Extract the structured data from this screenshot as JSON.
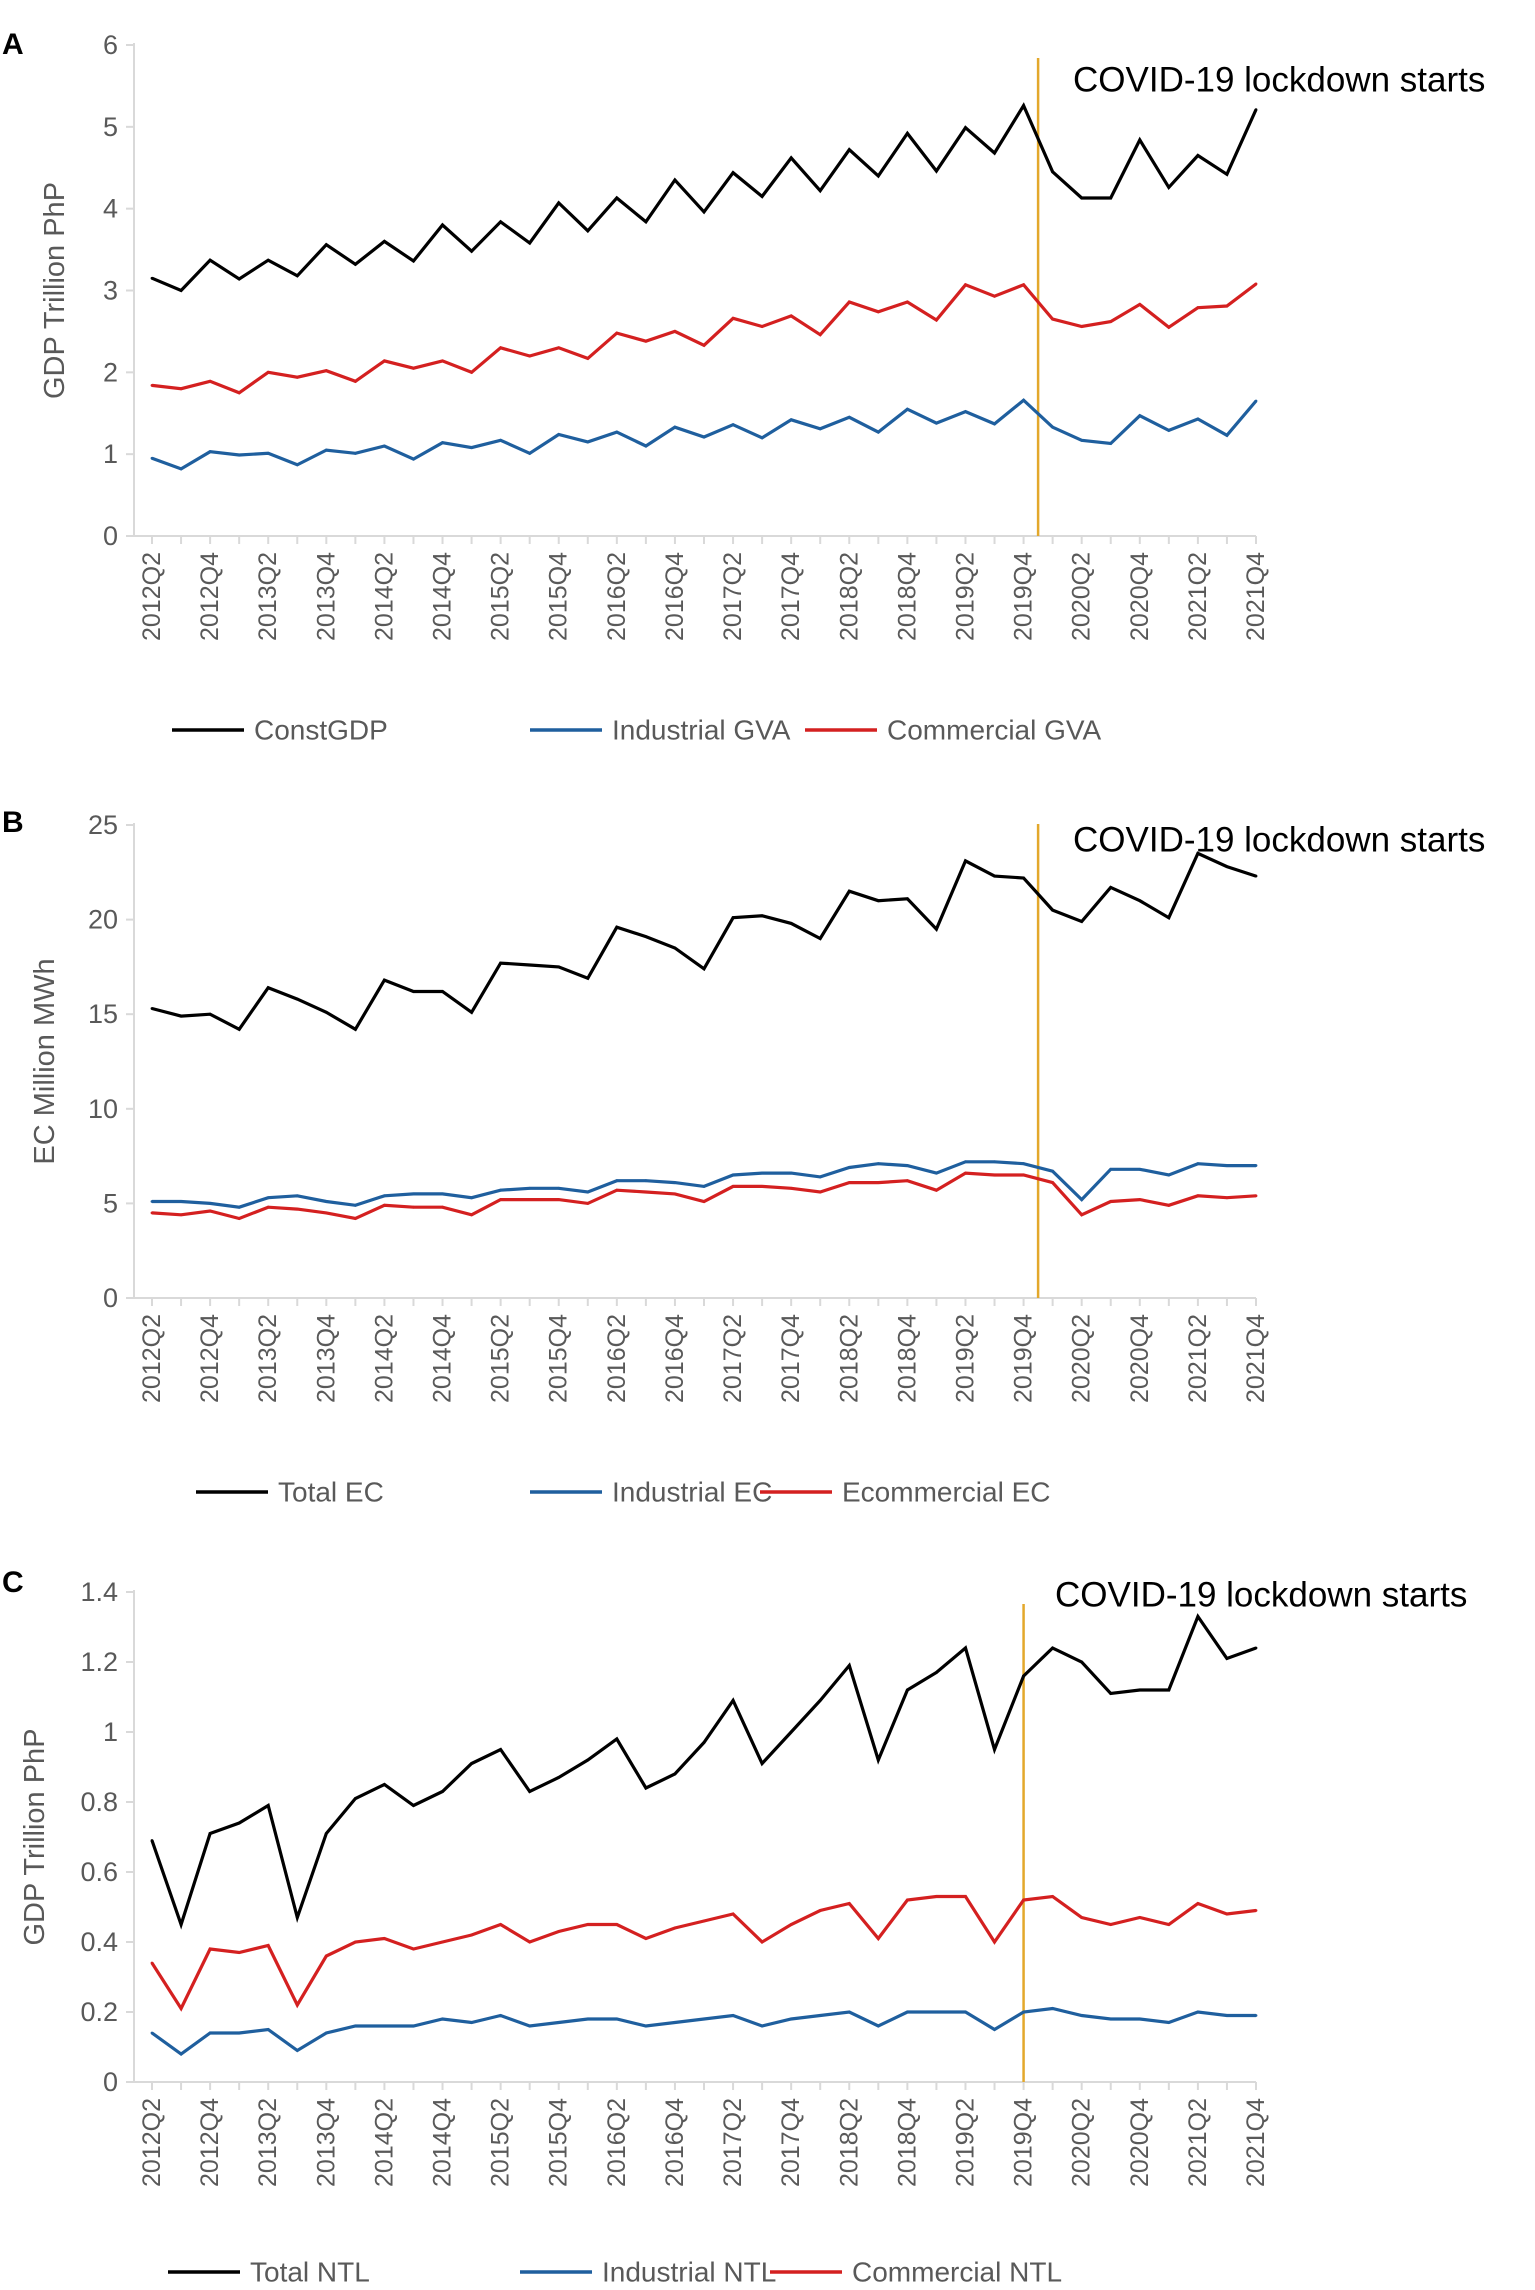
{
  "chart_data": [
    {
      "panel": "A",
      "type": "line",
      "ylabel": "GDP Trillion PhP",
      "ylim": [
        0,
        6
      ],
      "yticks": [
        "0",
        "1",
        "2",
        "3",
        "4",
        "5",
        "6"
      ],
      "x": [
        "2012Q2",
        "2012Q3",
        "2012Q4",
        "2013Q1",
        "2013Q2",
        "2013Q3",
        "2013Q4",
        "2014Q1",
        "2014Q2",
        "2014Q3",
        "2014Q4",
        "2015Q1",
        "2015Q2",
        "2015Q3",
        "2015Q4",
        "2016Q1",
        "2016Q2",
        "2016Q3",
        "2016Q4",
        "2017Q1",
        "2017Q2",
        "2017Q3",
        "2017Q4",
        "2018Q1",
        "2018Q2",
        "2018Q3",
        "2018Q4",
        "2019Q1",
        "2019Q2",
        "2019Q3",
        "2019Q4",
        "2020Q1",
        "2020Q2",
        "2020Q3",
        "2020Q4",
        "2021Q1",
        "2021Q2",
        "2021Q3",
        "2021Q4"
      ],
      "xtick_labels": [
        "2012Q2",
        "2012Q4",
        "2013Q2",
        "2013Q4",
        "2014Q2",
        "2014Q4",
        "2015Q2",
        "2015Q4",
        "2016Q2",
        "2016Q4",
        "2017Q2",
        "2017Q4",
        "2018Q2",
        "2018Q4",
        "2019Q2",
        "2019Q4",
        "2020Q2",
        "2020Q4",
        "2021Q2",
        "2021Q4"
      ],
      "annotation": "COVID-19 lockdown starts",
      "event_x": 30.5,
      "series": [
        {
          "name": "ConstGDP",
          "color": "#000000",
          "values": [
            3.15,
            3.0,
            3.37,
            3.14,
            3.37,
            3.18,
            3.56,
            3.32,
            3.6,
            3.36,
            3.8,
            3.48,
            3.84,
            3.58,
            4.07,
            3.73,
            4.13,
            3.84,
            4.35,
            3.96,
            4.44,
            4.15,
            4.62,
            4.22,
            4.72,
            4.4,
            4.92,
            4.46,
            4.99,
            4.68,
            5.26,
            4.45,
            4.13,
            4.13,
            4.84,
            4.26,
            4.65,
            4.42,
            5.21
          ]
        },
        {
          "name": "Industrial GVA",
          "color": "#1f5f9e",
          "values": [
            0.95,
            0.82,
            1.03,
            0.99,
            1.01,
            0.87,
            1.05,
            1.01,
            1.1,
            0.94,
            1.14,
            1.08,
            1.17,
            1.01,
            1.24,
            1.15,
            1.27,
            1.1,
            1.33,
            1.21,
            1.36,
            1.2,
            1.42,
            1.31,
            1.45,
            1.27,
            1.55,
            1.38,
            1.52,
            1.37,
            1.66,
            1.33,
            1.17,
            1.13,
            1.47,
            1.29,
            1.43,
            1.23,
            1.65
          ]
        },
        {
          "name": "Commercial GVA",
          "color": "#d42020",
          "values": [
            1.84,
            1.8,
            1.89,
            1.75,
            2.0,
            1.94,
            2.02,
            1.89,
            2.14,
            2.05,
            2.14,
            2.0,
            2.3,
            2.2,
            2.3,
            2.17,
            2.48,
            2.38,
            2.5,
            2.33,
            2.66,
            2.56,
            2.69,
            2.46,
            2.86,
            2.74,
            2.86,
            2.64,
            3.07,
            2.93,
            3.07,
            2.65,
            2.56,
            2.62,
            2.83,
            2.55,
            2.79,
            2.81,
            3.08
          ]
        }
      ]
    },
    {
      "panel": "B",
      "type": "line",
      "ylabel": "EC Million MWh",
      "ylim": [
        0,
        25
      ],
      "yticks": [
        "0",
        "5",
        "10",
        "15",
        "20",
        "25"
      ],
      "x": [
        "2012Q2",
        "2012Q3",
        "2012Q4",
        "2013Q1",
        "2013Q2",
        "2013Q3",
        "2013Q4",
        "2014Q1",
        "2014Q2",
        "2014Q3",
        "2014Q4",
        "2015Q1",
        "2015Q2",
        "2015Q3",
        "2015Q4",
        "2016Q1",
        "2016Q2",
        "2016Q3",
        "2016Q4",
        "2017Q1",
        "2017Q2",
        "2017Q3",
        "2017Q4",
        "2018Q1",
        "2018Q2",
        "2018Q3",
        "2018Q4",
        "2019Q1",
        "2019Q2",
        "2019Q3",
        "2019Q4",
        "2020Q1",
        "2020Q2",
        "2020Q3",
        "2020Q4",
        "2021Q1",
        "2021Q2",
        "2021Q3",
        "2021Q4"
      ],
      "xtick_labels": [
        "2012Q2",
        "2012Q4",
        "2013Q2",
        "2013Q4",
        "2014Q2",
        "2014Q4",
        "2015Q2",
        "2015Q4",
        "2016Q2",
        "2016Q4",
        "2017Q2",
        "2017Q4",
        "2018Q2",
        "2018Q4",
        "2019Q2",
        "2019Q4",
        "2020Q2",
        "2020Q4",
        "2021Q2",
        "2021Q4"
      ],
      "annotation": "COVID-19 lockdown starts",
      "event_x": 30.5,
      "series": [
        {
          "name": "Total EC",
          "color": "#000000",
          "values": [
            15.3,
            14.9,
            15.0,
            14.2,
            16.4,
            15.8,
            15.1,
            14.2,
            16.8,
            16.2,
            16.2,
            15.1,
            17.7,
            17.6,
            17.5,
            16.9,
            19.6,
            19.1,
            18.5,
            17.4,
            20.1,
            20.2,
            19.8,
            19.0,
            21.5,
            21.0,
            21.1,
            19.5,
            23.1,
            22.3,
            22.2,
            20.5,
            19.9,
            21.7,
            21.0,
            20.1,
            23.5,
            22.8,
            22.3
          ]
        },
        {
          "name": "Industrial EC",
          "color": "#1f5f9e",
          "values": [
            5.1,
            5.1,
            5.0,
            4.8,
            5.3,
            5.4,
            5.1,
            4.9,
            5.4,
            5.5,
            5.5,
            5.3,
            5.7,
            5.8,
            5.8,
            5.6,
            6.2,
            6.2,
            6.1,
            5.9,
            6.5,
            6.6,
            6.6,
            6.4,
            6.9,
            7.1,
            7.0,
            6.6,
            7.2,
            7.2,
            7.1,
            6.7,
            5.2,
            6.8,
            6.8,
            6.5,
            7.1,
            7.0,
            7.0
          ]
        },
        {
          "name": "Ecommercial EC",
          "color": "#d42020",
          "values": [
            4.5,
            4.4,
            4.6,
            4.2,
            4.8,
            4.7,
            4.5,
            4.2,
            4.9,
            4.8,
            4.8,
            4.4,
            5.2,
            5.2,
            5.2,
            5.0,
            5.7,
            5.6,
            5.5,
            5.1,
            5.9,
            5.9,
            5.8,
            5.6,
            6.1,
            6.1,
            6.2,
            5.7,
            6.6,
            6.5,
            6.5,
            6.1,
            4.4,
            5.1,
            5.2,
            4.9,
            5.4,
            5.3,
            5.4
          ]
        }
      ]
    },
    {
      "panel": "C",
      "type": "line",
      "ylabel": "GDP Trillion PhP",
      "ylim": [
        0,
        1.4
      ],
      "yticks": [
        "0",
        "0.2",
        "0.4",
        "0.6",
        "0.8",
        "1",
        "1.2",
        "1.4"
      ],
      "x": [
        "2012Q2",
        "2012Q3",
        "2012Q4",
        "2013Q1",
        "2013Q2",
        "2013Q3",
        "2013Q4",
        "2014Q1",
        "2014Q2",
        "2014Q3",
        "2014Q4",
        "2015Q1",
        "2015Q2",
        "2015Q3",
        "2015Q4",
        "2016Q1",
        "2016Q2",
        "2016Q3",
        "2016Q4",
        "2017Q1",
        "2017Q2",
        "2017Q3",
        "2017Q4",
        "2018Q1",
        "2018Q2",
        "2018Q3",
        "2018Q4",
        "2019Q1",
        "2019Q2",
        "2019Q3",
        "2019Q4",
        "2020Q1",
        "2020Q2",
        "2020Q3",
        "2020Q4",
        "2021Q1",
        "2021Q2",
        "2021Q3",
        "2021Q4"
      ],
      "xtick_labels": [
        "2012Q2",
        "2012Q4",
        "2013Q2",
        "2013Q4",
        "2014Q2",
        "2014Q4",
        "2015Q2",
        "2015Q4",
        "2016Q2",
        "2016Q4",
        "2017Q2",
        "2017Q4",
        "2018Q2",
        "2018Q4",
        "2019Q2",
        "2019Q4",
        "2020Q2",
        "2020Q4",
        "2021Q2",
        "2021Q4"
      ],
      "annotation": "COVID-19 lockdown starts",
      "event_x": 30.0,
      "series": [
        {
          "name": "Total NTL",
          "color": "#000000",
          "values": [
            0.69,
            0.45,
            0.71,
            0.74,
            0.79,
            0.47,
            0.71,
            0.81,
            0.85,
            0.79,
            0.83,
            0.91,
            0.95,
            0.83,
            0.87,
            0.92,
            0.98,
            0.84,
            0.88,
            0.97,
            1.09,
            0.91,
            1.0,
            1.09,
            1.19,
            0.92,
            1.12,
            1.17,
            1.24,
            0.95,
            1.16,
            1.24,
            1.2,
            1.11,
            1.12,
            1.12,
            1.33,
            1.21,
            1.24
          ]
        },
        {
          "name": "Industrial NTL",
          "color": "#1f5f9e",
          "values": [
            0.14,
            0.08,
            0.14,
            0.14,
            0.15,
            0.09,
            0.14,
            0.16,
            0.16,
            0.16,
            0.18,
            0.17,
            0.19,
            0.16,
            0.17,
            0.18,
            0.18,
            0.16,
            0.17,
            0.18,
            0.19,
            0.16,
            0.18,
            0.19,
            0.2,
            0.16,
            0.2,
            0.2,
            0.2,
            0.15,
            0.2,
            0.21,
            0.19,
            0.18,
            0.18,
            0.17,
            0.2,
            0.19,
            0.19
          ]
        },
        {
          "name": "Commercial NTL",
          "color": "#d42020",
          "values": [
            0.34,
            0.21,
            0.38,
            0.37,
            0.39,
            0.22,
            0.36,
            0.4,
            0.41,
            0.38,
            0.4,
            0.42,
            0.45,
            0.4,
            0.43,
            0.45,
            0.45,
            0.41,
            0.44,
            0.46,
            0.48,
            0.4,
            0.45,
            0.49,
            0.51,
            0.41,
            0.52,
            0.53,
            0.53,
            0.4,
            0.52,
            0.53,
            0.47,
            0.45,
            0.47,
            0.45,
            0.51,
            0.48,
            0.49
          ]
        }
      ]
    }
  ]
}
